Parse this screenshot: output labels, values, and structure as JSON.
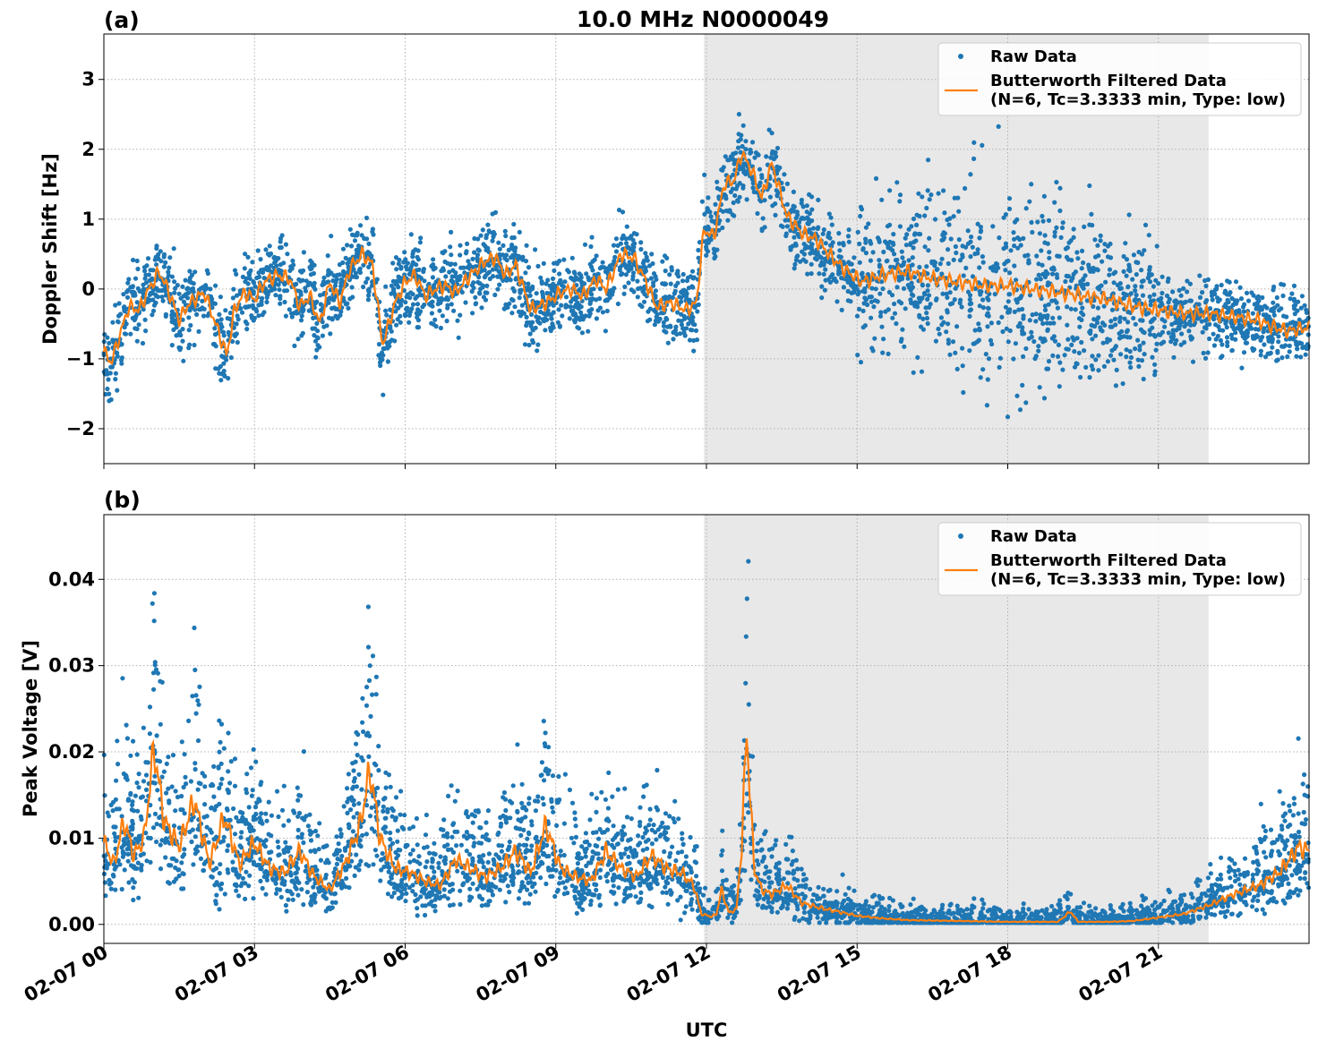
{
  "title": "10.0 MHz N0000049",
  "xlabel": "UTC",
  "colors": {
    "raw": "#1f77b4",
    "filtered": "#ff7f0e",
    "shade": "#e8e8e8",
    "grid": "#b0b0b0"
  },
  "x_ticks": [
    "02-07 00",
    "02-07 03",
    "02-07 06",
    "02-07 09",
    "02-07 12",
    "02-07 15",
    "02-07 18",
    "02-07 21"
  ],
  "legend": {
    "raw": "Raw Data",
    "filtered_line1": "Butterworth Filtered Data",
    "filtered_line2": "(N=6, Tc=3.3333 min, Type: low)"
  },
  "chart_data": [
    {
      "type": "scatter",
      "panel_label": "(a)",
      "ylabel": "Doppler Shift [Hz]",
      "x_unit": "hours UTC on 02-07",
      "xlim": [
        0,
        24
      ],
      "ylim": [
        -2.5,
        3.65
      ],
      "yticks": [
        {
          "v": 3,
          "label": "3"
        },
        {
          "v": 2,
          "label": "2"
        },
        {
          "v": 1,
          "label": "1"
        },
        {
          "v": 0,
          "label": "0"
        },
        {
          "v": -1,
          "label": "−1"
        },
        {
          "v": -2,
          "label": "−2"
        }
      ],
      "shaded_x": [
        11.95,
        22.0
      ],
      "grid": true,
      "legend_position": "top-right",
      "series": [
        {
          "name": "Raw Data",
          "style": "points"
        },
        {
          "name": "Butterworth Filtered Data",
          "style": "line",
          "x": [
            0,
            0.15,
            0.3,
            0.5,
            0.7,
            0.9,
            1.1,
            1.3,
            1.5,
            1.65,
            1.8,
            2.0,
            2.2,
            2.45,
            2.6,
            2.8,
            3.0,
            3.2,
            3.45,
            3.7,
            3.9,
            4.1,
            4.3,
            4.5,
            4.7,
            4.9,
            5.15,
            5.35,
            5.55,
            5.8,
            6.0,
            6.2,
            6.4,
            6.6,
            6.8,
            7.0,
            7.3,
            7.6,
            7.8,
            8.0,
            8.2,
            8.5,
            8.8,
            9.1,
            9.3,
            9.55,
            9.8,
            10.0,
            10.3,
            10.55,
            10.8,
            11.0,
            11.3,
            11.6,
            11.8,
            11.95,
            12.15,
            12.35,
            12.55,
            12.7,
            12.9,
            13.1,
            13.3,
            13.6,
            13.9,
            14.2,
            14.5,
            14.8,
            15.1,
            15.5,
            16.0,
            16.5,
            17.0,
            17.5,
            18.0,
            18.5,
            19.0,
            19.5,
            20.0,
            20.5,
            21.0,
            21.5,
            22.0,
            22.5,
            23.0,
            23.3,
            23.6,
            24.0
          ],
          "y": [
            -0.9,
            -1.05,
            -0.7,
            -0.25,
            -0.3,
            0.0,
            0.25,
            -0.05,
            -0.45,
            -0.25,
            -0.15,
            -0.05,
            -0.45,
            -0.95,
            -0.3,
            -0.05,
            -0.15,
            0.1,
            0.2,
            0.15,
            -0.25,
            -0.1,
            -0.5,
            0.1,
            -0.2,
            0.3,
            0.5,
            0.35,
            -0.8,
            -0.2,
            0.1,
            0.2,
            -0.1,
            0.0,
            0.05,
            -0.05,
            0.2,
            0.4,
            0.45,
            0.2,
            0.35,
            -0.3,
            -0.2,
            -0.05,
            0.0,
            -0.1,
            0.15,
            0.0,
            0.5,
            0.45,
            0.1,
            -0.25,
            -0.2,
            -0.3,
            -0.2,
            0.85,
            0.75,
            1.5,
            1.55,
            1.95,
            1.7,
            1.3,
            1.8,
            1.05,
            0.8,
            0.7,
            0.45,
            0.25,
            0.1,
            0.2,
            0.25,
            0.15,
            0.1,
            0.05,
            0.05,
            0.0,
            -0.05,
            -0.1,
            -0.15,
            -0.25,
            -0.3,
            -0.35,
            -0.35,
            -0.4,
            -0.45,
            -0.55,
            -0.6,
            -0.55
          ]
        }
      ]
    },
    {
      "type": "scatter",
      "panel_label": "(b)",
      "ylabel": "Peak Voltage [V]",
      "x_unit": "hours UTC on 02-07",
      "xlim": [
        0,
        24
      ],
      "ylim": [
        -0.0022,
        0.0475
      ],
      "yticks": [
        {
          "v": 0.04,
          "label": "0.04"
        },
        {
          "v": 0.03,
          "label": "0.03"
        },
        {
          "v": 0.02,
          "label": "0.02"
        },
        {
          "v": 0.01,
          "label": "0.01"
        },
        {
          "v": 0.0,
          "label": "0.00"
        }
      ],
      "shaded_x": [
        11.95,
        22.0
      ],
      "grid": true,
      "legend_position": "top-right",
      "series": [
        {
          "name": "Raw Data",
          "style": "points"
        },
        {
          "name": "Butterworth Filtered Data",
          "style": "line",
          "x": [
            0,
            0.2,
            0.4,
            0.6,
            0.8,
            1.0,
            1.2,
            1.5,
            1.8,
            2.1,
            2.4,
            2.7,
            3.0,
            3.3,
            3.6,
            3.9,
            4.2,
            4.5,
            4.8,
            5.1,
            5.3,
            5.5,
            5.8,
            6.1,
            6.4,
            6.7,
            7.0,
            7.3,
            7.6,
            7.9,
            8.2,
            8.5,
            8.8,
            9.1,
            9.4,
            9.7,
            10.0,
            10.3,
            10.6,
            10.9,
            11.2,
            11.5,
            11.75,
            11.9,
            12.1,
            12.2,
            12.3,
            12.45,
            12.6,
            12.7,
            12.8,
            12.95,
            13.1,
            13.3,
            13.6,
            13.9,
            14.2,
            14.6,
            15.0,
            15.5,
            16.0,
            17.0,
            18.0,
            19.0,
            19.25,
            19.4,
            20.0,
            20.5,
            21.0,
            21.5,
            22.0,
            22.5,
            23.0,
            23.4,
            23.8,
            24.0
          ],
          "y": [
            0.0095,
            0.007,
            0.012,
            0.008,
            0.01,
            0.0205,
            0.012,
            0.009,
            0.0145,
            0.007,
            0.0125,
            0.007,
            0.0095,
            0.0065,
            0.006,
            0.0085,
            0.0055,
            0.004,
            0.007,
            0.0115,
            0.018,
            0.01,
            0.0065,
            0.006,
            0.005,
            0.0045,
            0.0075,
            0.0065,
            0.0055,
            0.0065,
            0.0085,
            0.006,
            0.0115,
            0.0065,
            0.0055,
            0.005,
            0.0085,
            0.0065,
            0.0055,
            0.008,
            0.0065,
            0.006,
            0.0045,
            0.0012,
            0.0009,
            0.0012,
            0.004,
            0.0013,
            0.0018,
            0.009,
            0.0225,
            0.0065,
            0.004,
            0.0035,
            0.0045,
            0.0025,
            0.002,
            0.0015,
            0.001,
            0.0007,
            0.0005,
            0.0004,
            0.0003,
            0.0003,
            0.0015,
            0.0003,
            0.0003,
            0.0004,
            0.0008,
            0.0012,
            0.0022,
            0.0035,
            0.0045,
            0.006,
            0.009,
            0.0085
          ]
        }
      ]
    }
  ]
}
